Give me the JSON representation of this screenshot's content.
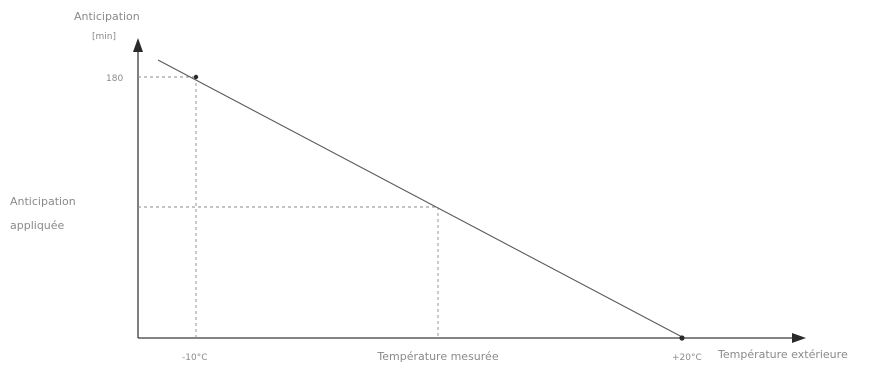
{
  "y_axis": {
    "title": "Anticipation",
    "unit": "[min]",
    "tick_180": "180",
    "applied_label_line1": "Anticipation",
    "applied_label_line2": "appliquée"
  },
  "x_axis": {
    "title": "Température extérieure",
    "tick_minus10": "-10°C",
    "tick_measured": "Température mesurée",
    "tick_plus20": "+20°C"
  },
  "chart_data": {
    "type": "line",
    "series": [
      {
        "x": [
          -10,
          20
        ],
        "y": [
          180,
          0
        ]
      }
    ],
    "reference": {
      "x_label": "Température mesurée",
      "y_label": "Anticipation appliquée"
    }
  }
}
